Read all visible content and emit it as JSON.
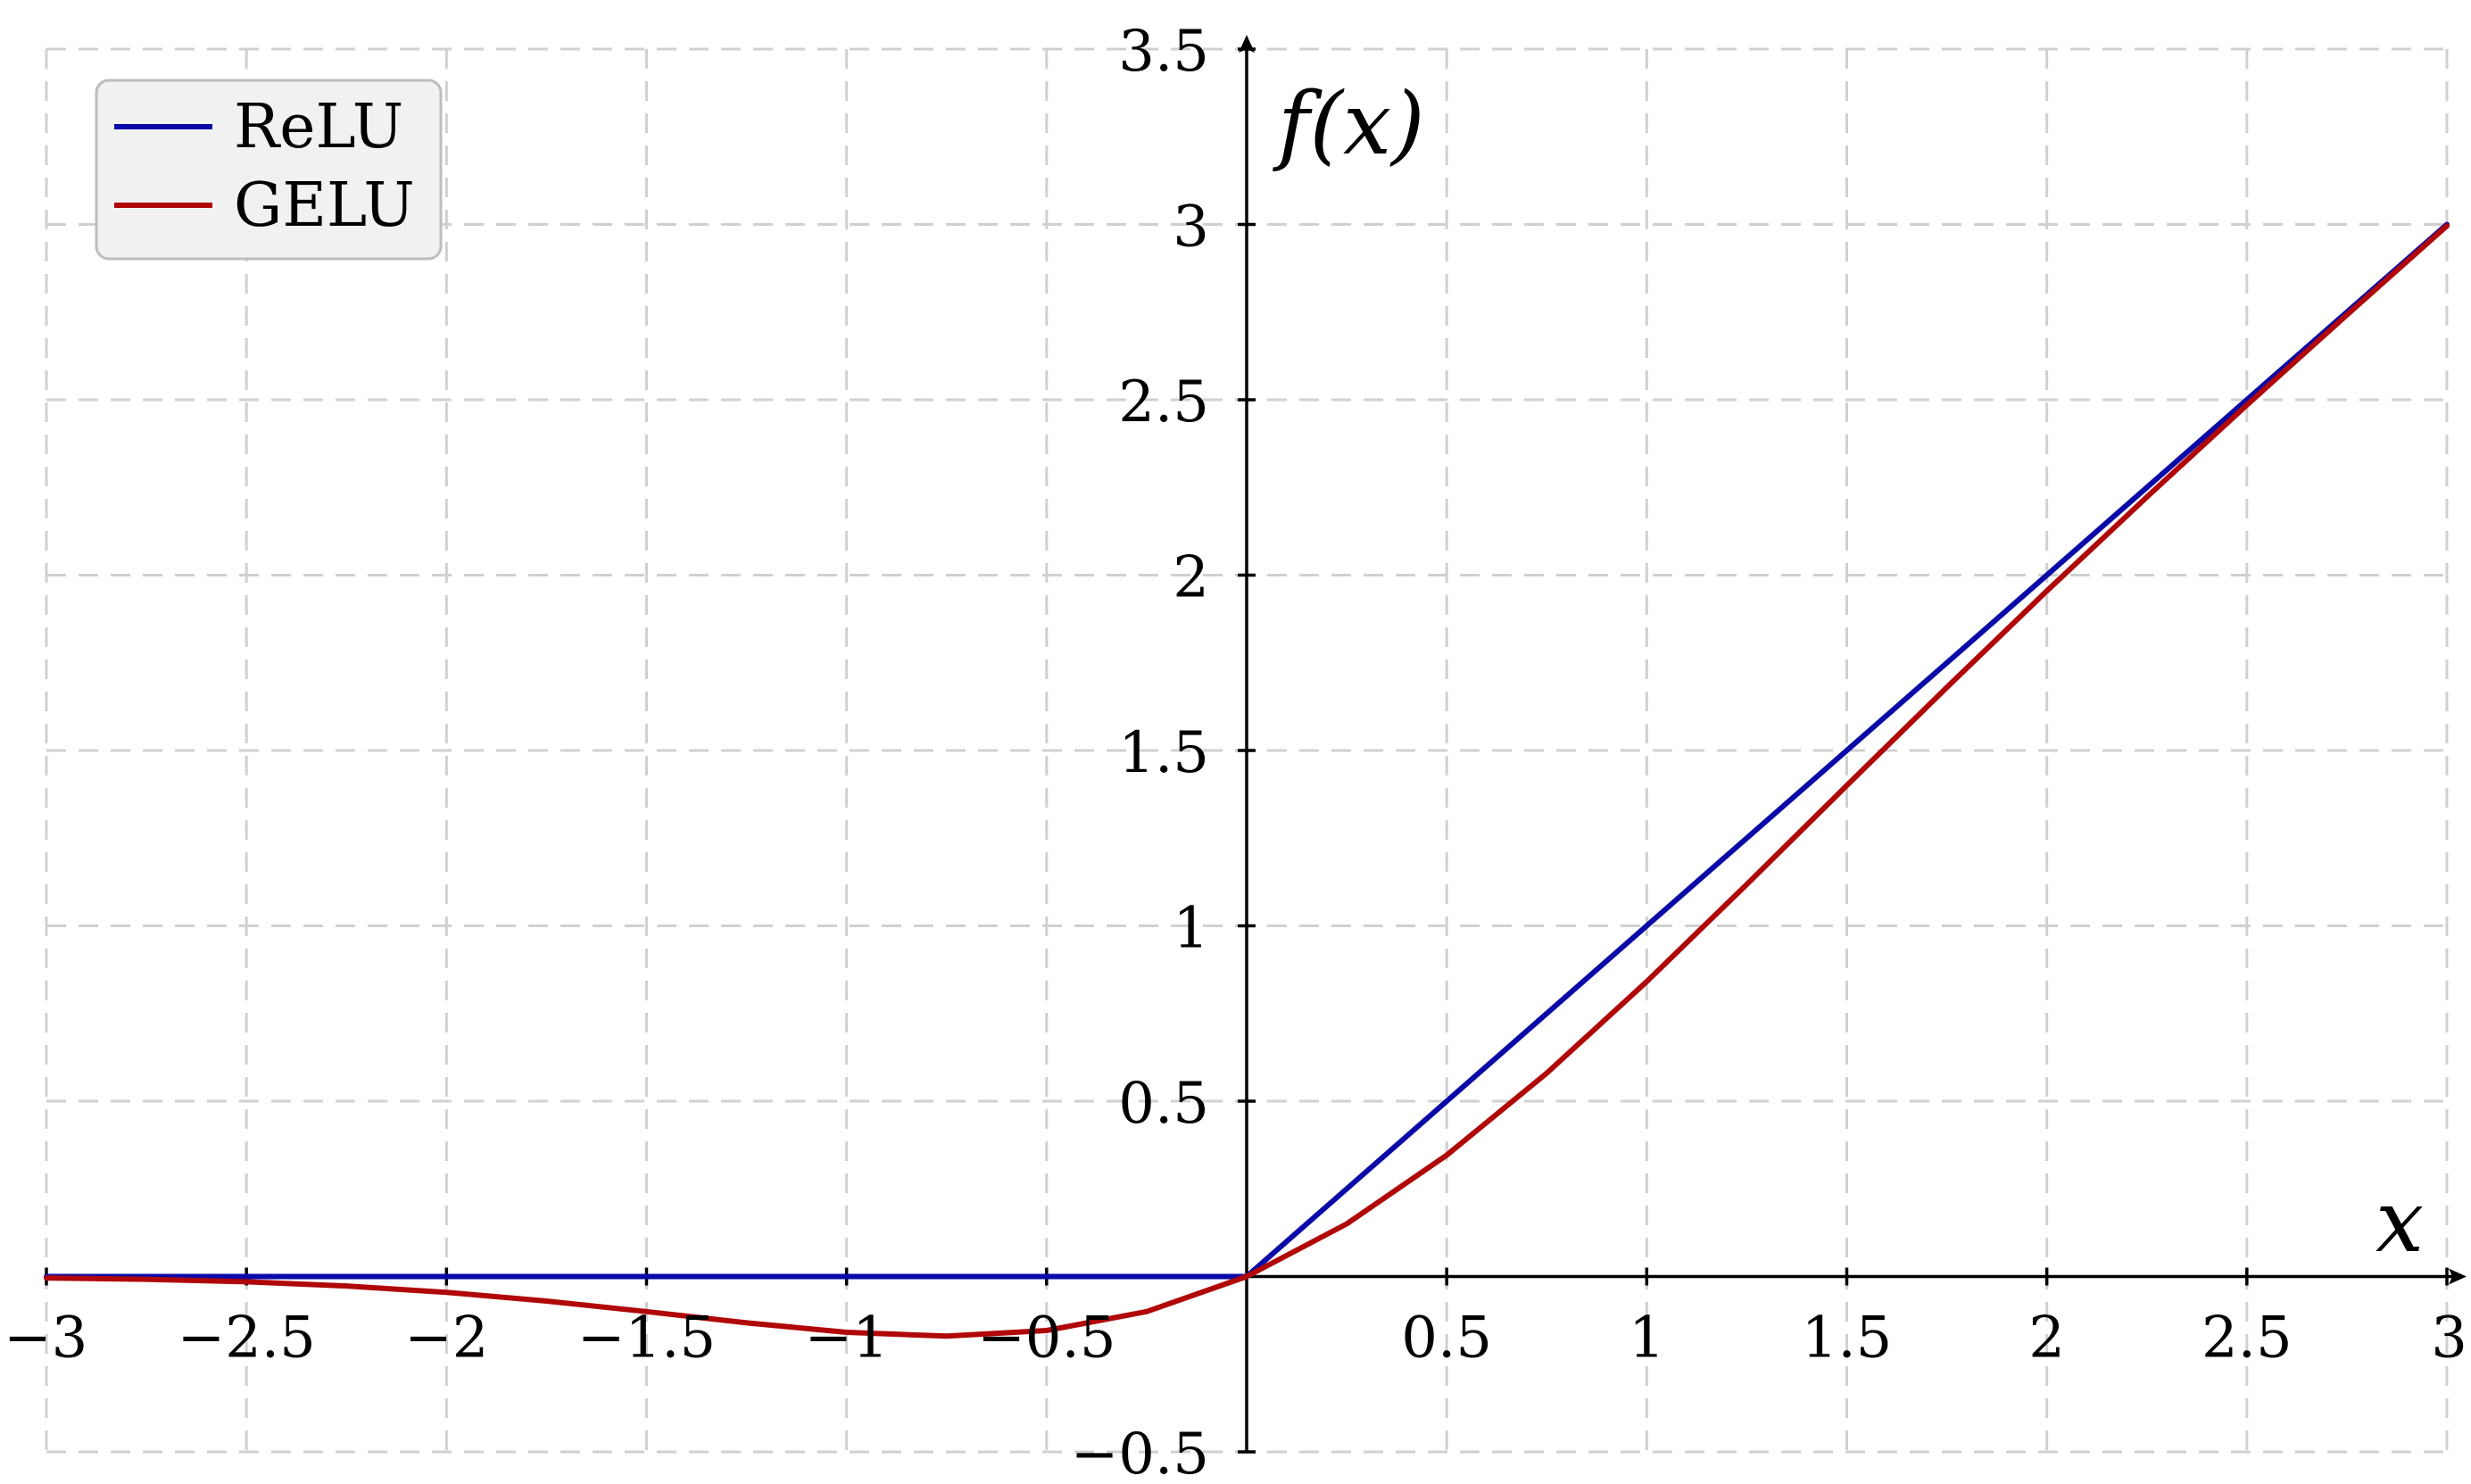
{
  "chart_data": {
    "type": "line",
    "title": "",
    "xlabel": "x",
    "ylabel": "f(x)",
    "xlim": [
      -3,
      3
    ],
    "ylim": [
      -0.5,
      3.5
    ],
    "grid": true,
    "legend_position": "top-left",
    "x_ticks": [
      {
        "value": -3,
        "label": "−3"
      },
      {
        "value": -2.5,
        "label": "−2.5"
      },
      {
        "value": -2,
        "label": "−2"
      },
      {
        "value": -1.5,
        "label": "−1.5"
      },
      {
        "value": -1,
        "label": "−1"
      },
      {
        "value": -0.5,
        "label": "−0.5"
      },
      {
        "value": 0.5,
        "label": "0.5"
      },
      {
        "value": 1,
        "label": "1"
      },
      {
        "value": 1.5,
        "label": "1.5"
      },
      {
        "value": 2,
        "label": "2"
      },
      {
        "value": 2.5,
        "label": "2.5"
      },
      {
        "value": 3,
        "label": "3"
      }
    ],
    "y_ticks": [
      {
        "value": -0.5,
        "label": "−0.5"
      },
      {
        "value": 0.5,
        "label": "0.5"
      },
      {
        "value": 1,
        "label": "1"
      },
      {
        "value": 1.5,
        "label": "1.5"
      },
      {
        "value": 2,
        "label": "2"
      },
      {
        "value": 2.5,
        "label": "2.5"
      },
      {
        "value": 3,
        "label": "3"
      },
      {
        "value": 3.5,
        "label": "3.5"
      }
    ],
    "series": [
      {
        "name": "ReLU",
        "color": "#0a0aa8",
        "points": [
          [
            -3,
            0
          ],
          [
            -2.5,
            0
          ],
          [
            -2,
            0
          ],
          [
            -1.5,
            0
          ],
          [
            -1,
            0
          ],
          [
            -0.5,
            0
          ],
          [
            0,
            0
          ],
          [
            0.5,
            0.5
          ],
          [
            1,
            1
          ],
          [
            1.5,
            1.5
          ],
          [
            2,
            2
          ],
          [
            2.5,
            2.5
          ],
          [
            3,
            3
          ]
        ]
      },
      {
        "name": "GELU",
        "color": "#b00808",
        "points": [
          [
            -3,
            -0.004
          ],
          [
            -2.75,
            -0.008
          ],
          [
            -2.5,
            -0.015
          ],
          [
            -2.25,
            -0.027
          ],
          [
            -2,
            -0.045
          ],
          [
            -1.75,
            -0.07
          ],
          [
            -1.5,
            -0.1
          ],
          [
            -1.25,
            -0.132
          ],
          [
            -1,
            -0.159
          ],
          [
            -0.75,
            -0.17
          ],
          [
            -0.5,
            -0.154
          ],
          [
            -0.25,
            -0.1
          ],
          [
            0,
            0
          ],
          [
            0.25,
            0.15
          ],
          [
            0.5,
            0.346
          ],
          [
            0.75,
            0.58
          ],
          [
            1,
            0.841
          ],
          [
            1.25,
            1.118
          ],
          [
            1.5,
            1.4
          ],
          [
            1.75,
            1.68
          ],
          [
            2,
            1.955
          ],
          [
            2.25,
            2.223
          ],
          [
            2.5,
            2.485
          ],
          [
            2.75,
            2.742
          ],
          [
            3,
            2.996
          ]
        ]
      }
    ]
  }
}
